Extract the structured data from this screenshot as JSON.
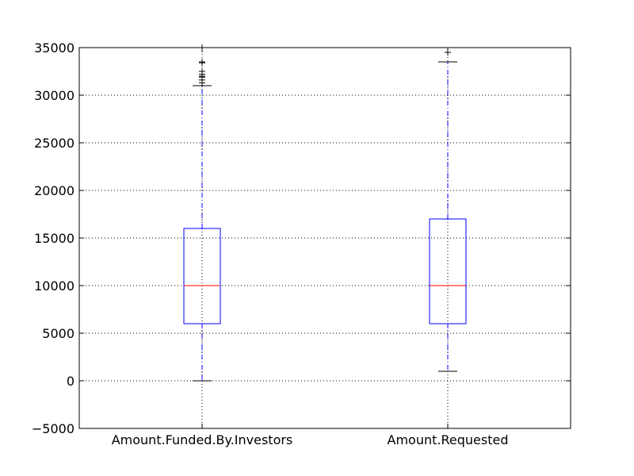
{
  "chart_data": {
    "type": "boxplot",
    "categories": [
      "Amount.Funded.By.Investors",
      "Amount.Requested"
    ],
    "ylim": [
      -5000,
      35000
    ],
    "yticks": [
      -5000,
      0,
      5000,
      10000,
      15000,
      20000,
      25000,
      30000,
      35000
    ],
    "ytick_labels": [
      "−5000",
      "0",
      "5000",
      "10000",
      "15000",
      "20000",
      "25000",
      "30000",
      "35000"
    ],
    "grid": true,
    "boxes": [
      {
        "q1": 6000,
        "median": 10000,
        "q3": 16000,
        "whisker_low": 0,
        "whisker_high": 31000,
        "outliers": [
          31300,
          31600,
          31900,
          32000,
          32200,
          32500,
          33400,
          33500,
          35000
        ]
      },
      {
        "q1": 6000,
        "median": 10000,
        "q3": 17000,
        "whisker_low": 1000,
        "whisker_high": 33500,
        "outliers": [
          34500
        ]
      }
    ],
    "colors": {
      "box": "#0000ff",
      "median": "#ff0000",
      "whisker": "#0000ff",
      "cap": "#000000",
      "flier": "#000000",
      "grid": "#000000"
    }
  }
}
